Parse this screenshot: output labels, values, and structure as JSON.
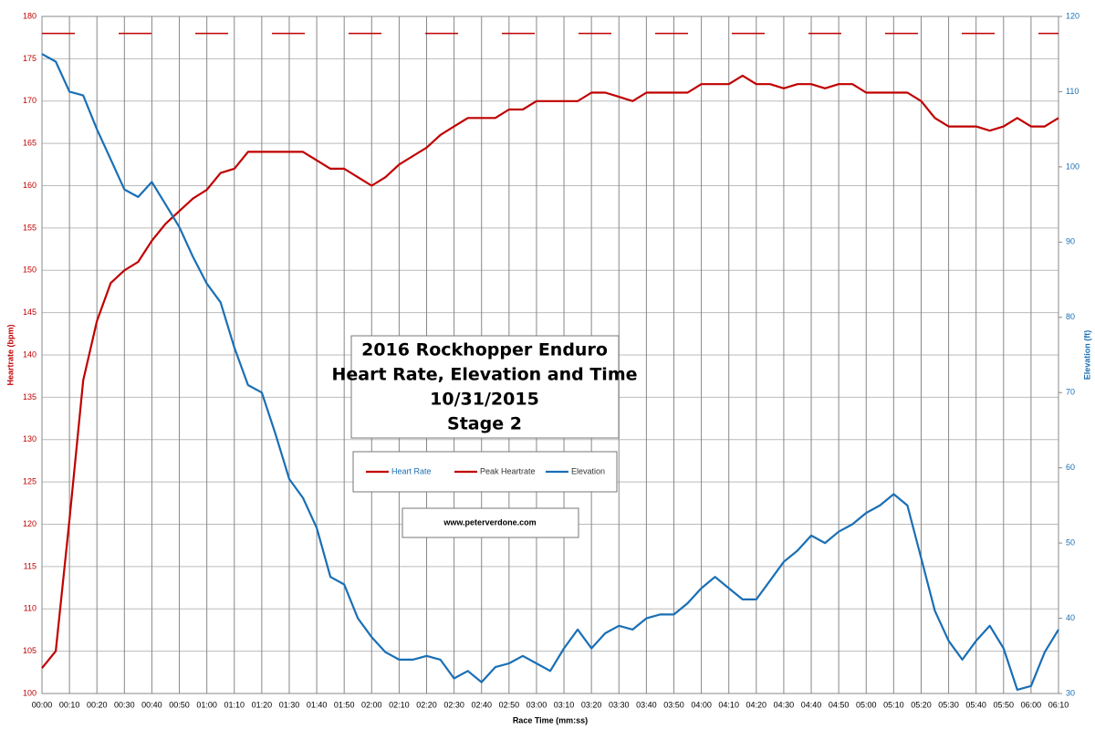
{
  "chart_data": {
    "type": "line",
    "title": [
      "2016 Rockhopper Enduro",
      "Heart Rate, Elevation and Time",
      "10/31/2015",
      "Stage 2"
    ],
    "annotation": "www.peterverdone.com",
    "xlabel": "Race Time (mm:ss)",
    "ylabel": "Heartrate (bpm)",
    "y2label": "Elevation (ft)",
    "x": [
      0,
      5,
      10,
      15,
      20,
      25,
      30,
      35,
      40,
      45,
      50,
      55,
      60,
      65,
      70,
      75,
      80,
      85,
      90,
      95,
      100,
      105,
      110,
      115,
      120,
      125,
      130,
      135,
      140,
      145,
      150,
      155,
      160,
      165,
      170,
      175,
      180,
      185,
      190,
      195,
      200,
      205,
      210,
      215,
      220,
      225,
      230,
      235,
      240,
      245,
      250,
      255,
      260,
      265,
      270,
      275,
      280,
      285,
      290,
      295,
      300,
      305,
      310,
      315,
      320,
      325,
      330,
      335,
      340,
      345,
      350,
      355,
      360,
      365,
      370
    ],
    "series": [
      {
        "name": "Heart Rate",
        "color": "#c00000",
        "axis": "y",
        "values": [
          103,
          105,
          120.5,
          137,
          144,
          148.5,
          150,
          151,
          153.5,
          155.5,
          157,
          158.5,
          159.5,
          161.5,
          162,
          164,
          164,
          164,
          164,
          164,
          163,
          162,
          162,
          161,
          160,
          161,
          162.5,
          163.5,
          164.5,
          166,
          167,
          168,
          168,
          168,
          169,
          169,
          170,
          170,
          170,
          170,
          171,
          171,
          170.5,
          170,
          171,
          171,
          171,
          171,
          172,
          172,
          172,
          173,
          172,
          172,
          171.5,
          172,
          172,
          171.5,
          172,
          172,
          171,
          171,
          171,
          171,
          170,
          168,
          167,
          167,
          167,
          166.5,
          167,
          168,
          167,
          167,
          168
        ]
      },
      {
        "name": "Peak Heartrate",
        "color": "#c00000",
        "axis": "y",
        "dash": true,
        "values": [
          178,
          178,
          178,
          178,
          178,
          178,
          178,
          178,
          178,
          178,
          178,
          178,
          178,
          178,
          178,
          178,
          178,
          178,
          178,
          178,
          178,
          178,
          178,
          178,
          178,
          178,
          178,
          178,
          178,
          178,
          178,
          178,
          178,
          178,
          178,
          178,
          178,
          178,
          178,
          178,
          178,
          178,
          178,
          178,
          178,
          178,
          178,
          178,
          178,
          178,
          178,
          178,
          178,
          178,
          178,
          178,
          178,
          178,
          178,
          178,
          178,
          178,
          178,
          178,
          178,
          178,
          178,
          178,
          178,
          178,
          178,
          178,
          178,
          178,
          178
        ]
      },
      {
        "name": "Elevation",
        "color": "#1a6fb5",
        "axis": "y2",
        "values": [
          115,
          114,
          110,
          109.5,
          105,
          101,
          97,
          96,
          98,
          95,
          92,
          88,
          84.5,
          82,
          76,
          71,
          70,
          64.5,
          58.5,
          56,
          52,
          45.5,
          44.5,
          40,
          37.5,
          35.5,
          34.5,
          34.5,
          35,
          34.5,
          32,
          33,
          31.5,
          33.5,
          34,
          35,
          34,
          33,
          36,
          38.5,
          36,
          38,
          39,
          38.5,
          40,
          40.5,
          40.5,
          42,
          44,
          45.5,
          44,
          42.5,
          42.5,
          45,
          47.5,
          49,
          51,
          50,
          51.5,
          52.5,
          54,
          55,
          56.5,
          55,
          48,
          41,
          37,
          34.5,
          37,
          39,
          36,
          30.5,
          31,
          35.5,
          38.5
        ]
      }
    ],
    "xlim": [
      0,
      370
    ],
    "ylim": [
      100,
      180
    ],
    "y2lim": [
      30,
      120
    ],
    "yticks": [
      100,
      105,
      110,
      115,
      120,
      125,
      130,
      135,
      140,
      145,
      150,
      155,
      160,
      165,
      170,
      175,
      180
    ],
    "y2ticks": [
      30,
      40,
      50,
      60,
      70,
      80,
      90,
      100,
      110,
      120
    ],
    "xticks": [
      {
        "value": 0,
        "label": "00:00"
      },
      {
        "value": 10,
        "label": "00:10"
      },
      {
        "value": 20,
        "label": "00:20"
      },
      {
        "value": 30,
        "label": "00:30"
      },
      {
        "value": 40,
        "label": "00:40"
      },
      {
        "value": 50,
        "label": "00:50"
      },
      {
        "value": 60,
        "label": "01:00"
      },
      {
        "value": 70,
        "label": "01:10"
      },
      {
        "value": 80,
        "label": "01:20"
      },
      {
        "value": 90,
        "label": "01:30"
      },
      {
        "value": 100,
        "label": "01:40"
      },
      {
        "value": 110,
        "label": "01:50"
      },
      {
        "value": 120,
        "label": "02:00"
      },
      {
        "value": 130,
        "label": "02:10"
      },
      {
        "value": 140,
        "label": "02:20"
      },
      {
        "value": 150,
        "label": "02:30"
      },
      {
        "value": 160,
        "label": "02:40"
      },
      {
        "value": 170,
        "label": "02:50"
      },
      {
        "value": 180,
        "label": "03:00"
      },
      {
        "value": 190,
        "label": "03:10"
      },
      {
        "value": 200,
        "label": "03:20"
      },
      {
        "value": 210,
        "label": "03:30"
      },
      {
        "value": 220,
        "label": "03:40"
      },
      {
        "value": 230,
        "label": "03:50"
      },
      {
        "value": 240,
        "label": "04:00"
      },
      {
        "value": 250,
        "label": "04:10"
      },
      {
        "value": 260,
        "label": "04:20"
      },
      {
        "value": 270,
        "label": "04:30"
      },
      {
        "value": 280,
        "label": "04:40"
      },
      {
        "value": 290,
        "label": "04:50"
      },
      {
        "value": 300,
        "label": "05:00"
      },
      {
        "value": 310,
        "label": "05:10"
      },
      {
        "value": 320,
        "label": "05:20"
      },
      {
        "value": 330,
        "label": "05:30"
      },
      {
        "value": 340,
        "label": "05:40"
      },
      {
        "value": 350,
        "label": "05:50"
      },
      {
        "value": 360,
        "label": "06:00"
      },
      {
        "value": 370,
        "label": "06:10"
      }
    ],
    "grid": true
  }
}
